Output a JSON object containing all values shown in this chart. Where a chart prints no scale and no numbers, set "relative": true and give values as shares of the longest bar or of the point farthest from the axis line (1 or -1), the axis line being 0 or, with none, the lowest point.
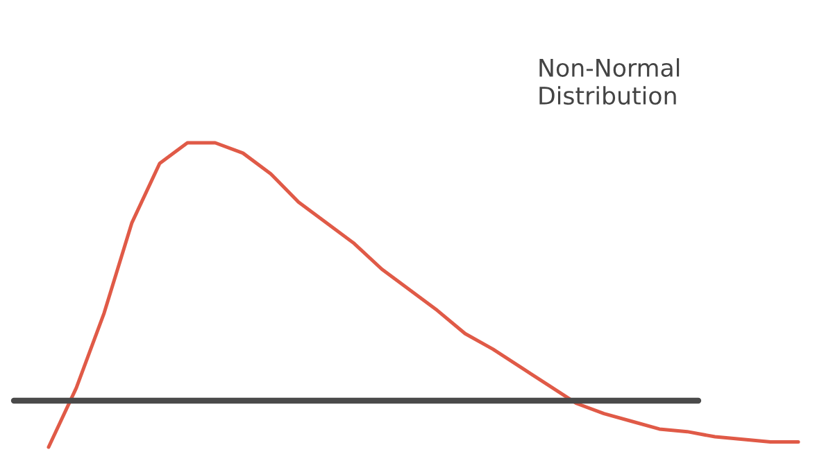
{
  "chart_data": {
    "type": "line",
    "relative": true,
    "annotations": [
      "Non-Normal\nDistribution"
    ],
    "categories": [
      null,
      null,
      null,
      null,
      null,
      null,
      null,
      null,
      null,
      null,
      null,
      null,
      null,
      null,
      null,
      null,
      null,
      null,
      null,
      null,
      null,
      null,
      null,
      null,
      null,
      null,
      null,
      null
    ],
    "series": [
      {
        "color": "#e05a47",
        "values": [
          -0.18,
          0.05,
          0.34,
          0.69,
          0.92,
          1.0,
          1.0,
          0.96,
          0.88,
          0.77,
          0.69,
          0.61,
          0.51,
          0.43,
          0.35,
          0.26,
          0.2,
          0.13,
          0.06,
          -0.01,
          -0.05,
          -0.08,
          -0.11,
          -0.12,
          -0.14,
          -0.15,
          -0.16,
          -0.16
        ]
      }
    ],
    "ref_lines": [
      {
        "axis": "y",
        "value": 0,
        "color": "#4a4a4a"
      }
    ],
    "marker": "none",
    "line_style": "solid",
    "legend": false
  }
}
